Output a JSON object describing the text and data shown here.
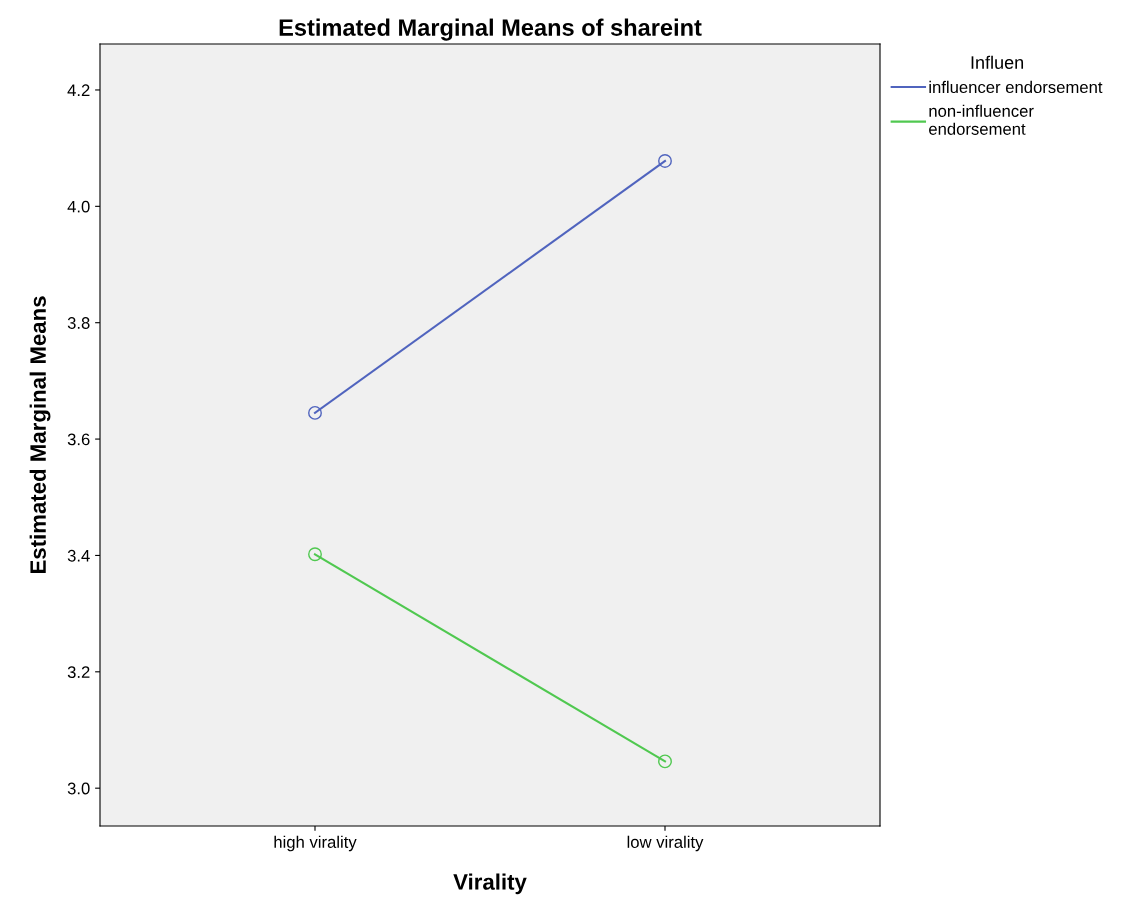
{
  "chart_data": {
    "type": "line",
    "title": "Estimated Marginal Means of shareint",
    "xlabel": "Virality",
    "ylabel": "Estimated Marginal Means",
    "legend_title": "Influen",
    "categories": [
      "high virality",
      "low virality"
    ],
    "series": [
      {
        "name": "influencer endorsement",
        "color": "#5064be",
        "values": [
          3.645,
          4.078
        ]
      },
      {
        "name": "non-influencer\nendorsement",
        "color": "#50c850",
        "values": [
          3.402,
          3.046
        ]
      }
    ],
    "ylim": [
      2.935,
      4.279
    ],
    "yticks": [
      {
        "value": 3.0,
        "label": "3.0"
      },
      {
        "value": 3.2,
        "label": "3.2"
      },
      {
        "value": 3.4,
        "label": "3.4"
      },
      {
        "value": 3.6,
        "label": "3.6"
      },
      {
        "value": 3.8,
        "label": "3.8"
      },
      {
        "value": 4.0,
        "label": "4.0"
      },
      {
        "value": 4.2,
        "label": "4.2"
      }
    ],
    "grid": false,
    "legend": "right",
    "marker": "circle",
    "line_style": "solid"
  }
}
